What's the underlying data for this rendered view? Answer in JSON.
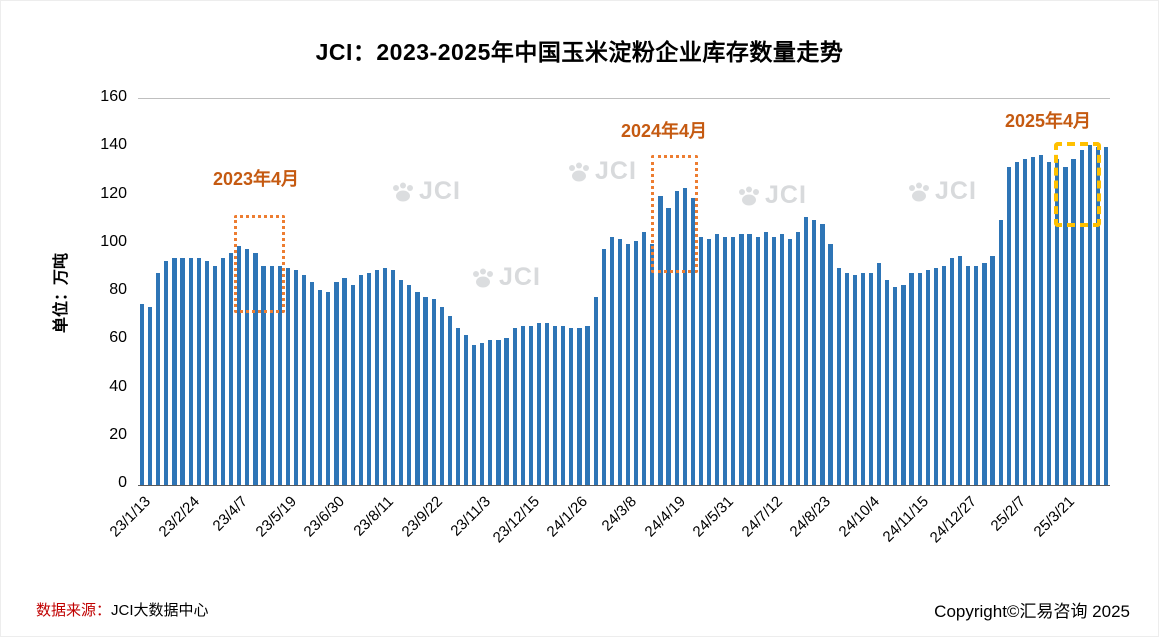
{
  "title": "JCI：2023-2025年中国玉米淀粉企业库存数量走势",
  "y_axis": {
    "label": "单位：万吨",
    "ticks": [
      160,
      140,
      120,
      100,
      80,
      60,
      40,
      20,
      0
    ]
  },
  "watermark": "JCI",
  "footer": {
    "source_prefix": "数据来源：",
    "source_name": "JCI大数据中心",
    "copyright": "Copyright©汇易咨询 2025"
  },
  "chart_data": {
    "type": "bar",
    "title": "JCI：2023-2025年中国玉米淀粉企业库存数量走势",
    "xlabel": "",
    "ylabel": "单位：万吨",
    "ylim": [
      0,
      160
    ],
    "grid": false,
    "bar_color": "#2E75B6",
    "label_every": 6,
    "x_labels": [
      "23/1/13",
      "23/2/24",
      "23/4/7",
      "23/5/19",
      "23/6/30",
      "23/8/11",
      "23/9/22",
      "23/11/3",
      "23/12/15",
      "24/1/26",
      "24/3/8",
      "24/4/19",
      "24/5/31",
      "24/7/12",
      "24/8/23",
      "24/10/4",
      "24/11/15",
      "24/12/27",
      "25/2/7",
      "25/3/21"
    ],
    "values": [
      75,
      74,
      88,
      93,
      94,
      94,
      94,
      94,
      93,
      91,
      94,
      96,
      99,
      98,
      96,
      91,
      91,
      91,
      90,
      89,
      87,
      84,
      81,
      80,
      84,
      86,
      83,
      87,
      88,
      89,
      90,
      89,
      85,
      83,
      80,
      78,
      77,
      74,
      70,
      65,
      62,
      58,
      59,
      60,
      60,
      61,
      65,
      66,
      66,
      67,
      67,
      66,
      66,
      65,
      65,
      66,
      78,
      98,
      103,
      102,
      100,
      101,
      105,
      100,
      120,
      115,
      122,
      123,
      119,
      103,
      102,
      104,
      103,
      103,
      104,
      104,
      103,
      105,
      103,
      104,
      102,
      105,
      111,
      110,
      108,
      100,
      90,
      88,
      87,
      88,
      88,
      92,
      85,
      82,
      83,
      88,
      88,
      89,
      90,
      91,
      94,
      95,
      91,
      91,
      92,
      95,
      110,
      132,
      134,
      135,
      136,
      137,
      134,
      135,
      132,
      135,
      139,
      141,
      140,
      140
    ],
    "annotations": [
      {
        "label": "2023年4月"
      },
      {
        "label": "2024年4月"
      },
      {
        "label": "2025年4月"
      }
    ]
  }
}
